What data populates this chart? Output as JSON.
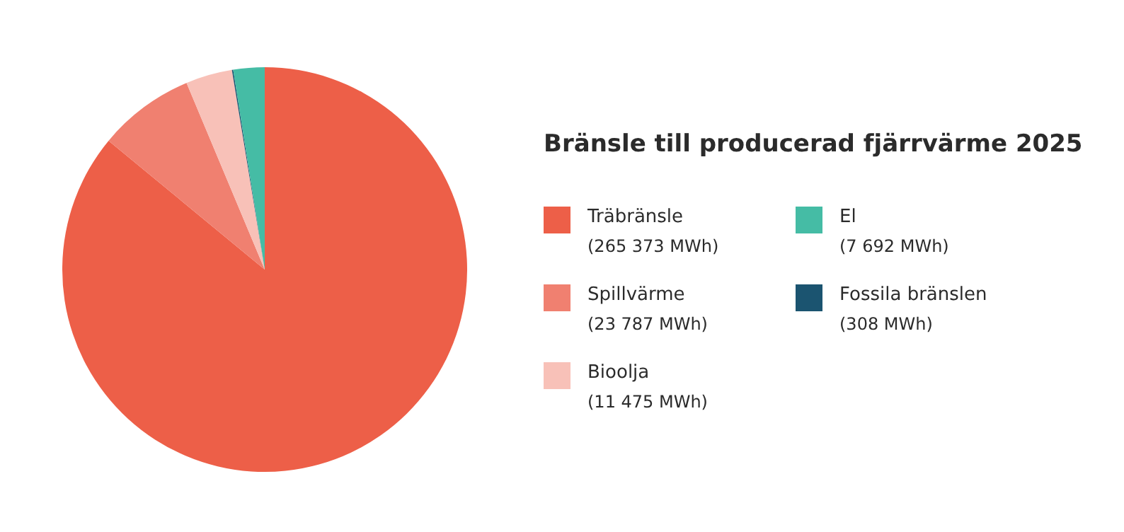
{
  "chart_data": {
    "type": "pie",
    "title": "Bränsle till producerad fjärrvärme 2025",
    "categories": [
      "Träbränsle",
      "Spillvärme",
      "Bioolja",
      "Fossila bränslen",
      "El"
    ],
    "values": [
      265373,
      23787,
      11475,
      308,
      7692
    ],
    "value_labels": [
      "(265 373 MWh)",
      "(23 787 MWh)",
      "(11 475 MWh)",
      "(308 MWh)",
      "(7 692 MWh)"
    ],
    "colors": [
      "#ed5f48",
      "#f08070",
      "#f8c1b8",
      "#1b5470",
      "#45bca5"
    ],
    "legend": "right"
  }
}
